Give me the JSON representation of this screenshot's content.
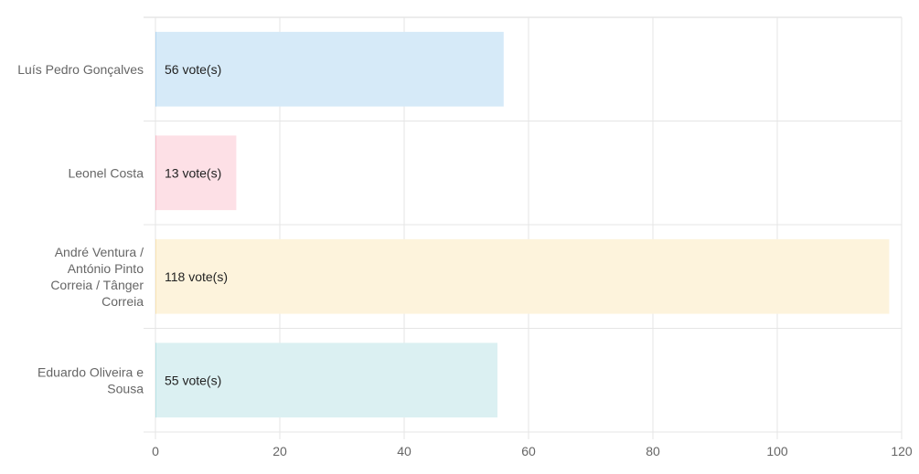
{
  "chart_data": {
    "type": "bar",
    "orientation": "horizontal",
    "categories": [
      [
        "Luís Pedro Gonçalves"
      ],
      [
        "Leonel Costa"
      ],
      [
        "André Ventura /",
        "António Pinto",
        "Correia / Tânger",
        "Correia"
      ],
      [
        "Eduardo Oliveira e",
        "Sousa"
      ]
    ],
    "values": [
      56,
      13,
      118,
      55
    ],
    "data_labels": [
      "56 vote(s)",
      "13 vote(s)",
      "118 vote(s)",
      "55 vote(s)"
    ],
    "bar_colors": [
      "#d6eaf8",
      "#fde0e6",
      "#fdf3dc",
      "#dbf0f2"
    ],
    "bar_edge_colors": [
      "#b4d7f3",
      "#f8bfcb",
      "#f9e3b4",
      "#b9e3e6"
    ],
    "xlim": [
      0,
      120
    ],
    "x_ticks": [
      0,
      20,
      40,
      60,
      80,
      100,
      120
    ],
    "x_tick_labels": [
      "0",
      "20",
      "40",
      "60",
      "80",
      "100",
      "120"
    ],
    "grid": true,
    "legend": "none"
  }
}
